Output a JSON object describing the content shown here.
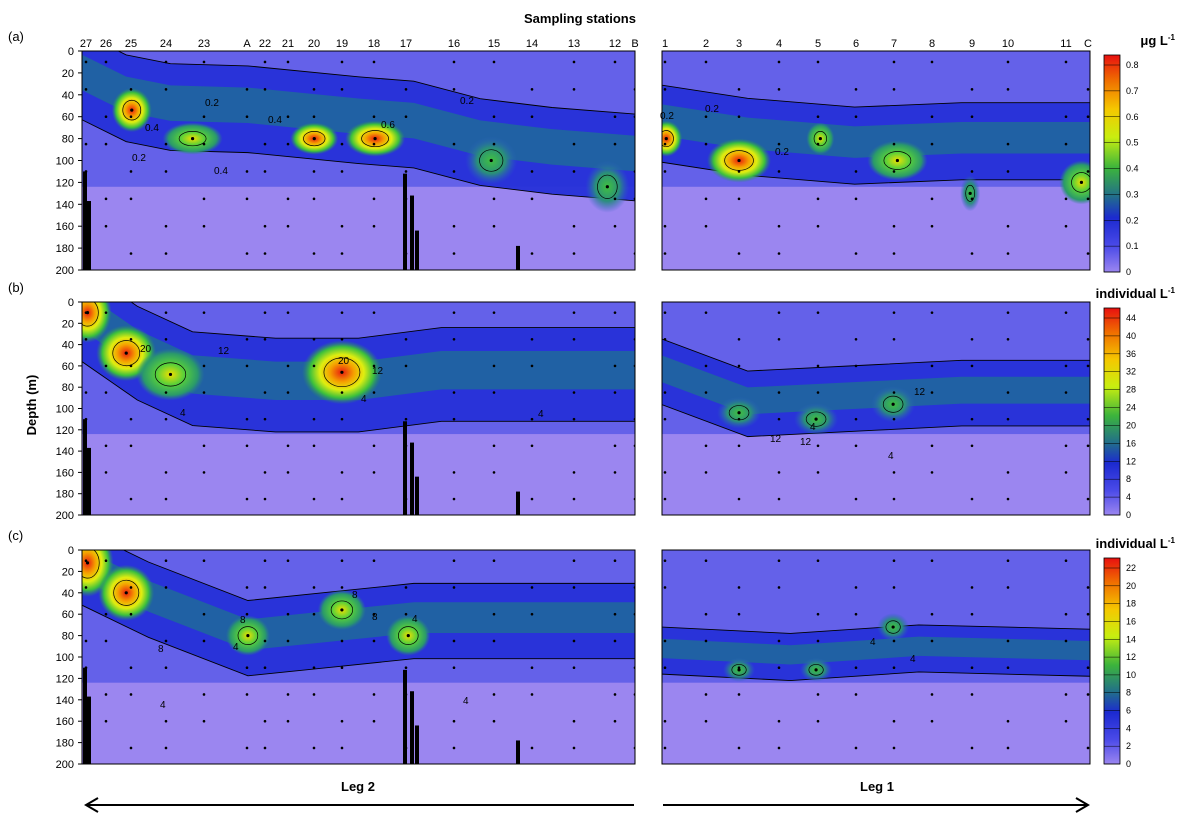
{
  "figure": {
    "top_title": "Sampling stations",
    "ylabel": "Depth (m)",
    "leg2_label": "Leg 2",
    "leg1_label": "Leg 1"
  },
  "chart_data": [
    {
      "type": "heatmap",
      "panel": "(a)",
      "colorbar_unit": "μg L",
      "colorbar_unit_sup": "-1",
      "colorbar_ticks": [
        "0.8",
        "0.7",
        "0.6",
        "0.5",
        "0.4",
        "0.3",
        "0.2",
        "0.1",
        "0"
      ],
      "contour_labels": [
        "0.2",
        "0.4",
        "0.6",
        "0.2",
        "0.4",
        "0.2",
        "0.4",
        "0.2",
        "0.2",
        "0.2"
      ]
    },
    {
      "type": "heatmap",
      "panel": "(b)",
      "colorbar_unit": "individual L",
      "colorbar_unit_sup": "-1",
      "colorbar_ticks": [
        "44",
        "40",
        "36",
        "32",
        "28",
        "24",
        "20",
        "16",
        "12",
        "8",
        "4",
        "0"
      ],
      "contour_labels": [
        "20",
        "12",
        "20",
        "12",
        "4",
        "4",
        "4",
        "12",
        "12",
        "12",
        "4",
        "4"
      ]
    },
    {
      "type": "heatmap",
      "panel": "(c)",
      "colorbar_unit": "individual L",
      "colorbar_unit_sup": "-1",
      "colorbar_ticks": [
        "22",
        "20",
        "18",
        "16",
        "14",
        "12",
        "10",
        "8",
        "6",
        "4",
        "2",
        "0"
      ],
      "contour_labels": [
        "8",
        "4",
        "8",
        "8",
        "8",
        "4",
        "4",
        "4",
        "4",
        "4"
      ]
    }
  ],
  "x_axis": {
    "leg2_stations": [
      "27",
      "26",
      "25",
      "24",
      "23",
      "A",
      "22",
      "21",
      "20",
      "19",
      "18",
      "17",
      "16",
      "15",
      "14",
      "13",
      "12",
      "B"
    ],
    "leg1_stations": [
      "1",
      "2",
      "3",
      "4",
      "5",
      "6",
      "7",
      "8",
      "9",
      "10",
      "11",
      "C"
    ]
  },
  "y_axis": {
    "ticks": [
      "0",
      "20",
      "40",
      "60",
      "80",
      "100",
      "120",
      "140",
      "160",
      "180",
      "200"
    ],
    "ylim": [
      0,
      200
    ],
    "inverted": true
  },
  "colors": {
    "background_fill": "#9b86f0",
    "low": "#3a2fd8",
    "mid": "#2ea34a",
    "high": "#e81010"
  }
}
